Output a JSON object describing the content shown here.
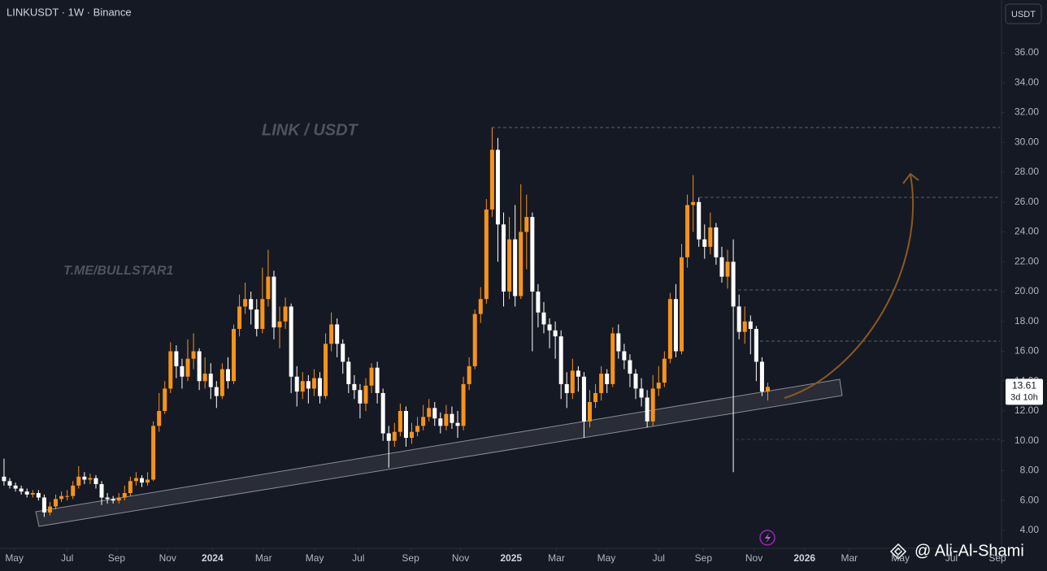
{
  "chart_data": {
    "type": "candlestick",
    "title": "LINKUSDT · 1W · Binance",
    "currency": "USDT",
    "annotations": [
      "LINK / USDT",
      "T.ME/BULLSTAR1"
    ],
    "credit": "@ Ali-Al-Shami",
    "last_price": 13.61,
    "countdown": "3d 10h",
    "up_color": "#f7931a",
    "down_color": "#ffffff",
    "xlim": [
      -0.7,
      173.7
    ],
    "ylim": [
      2.8,
      39.54
    ],
    "xticks": [
      {
        "value": 1.8,
        "label": "May"
      },
      {
        "value": 11.0,
        "label": "Jul"
      },
      {
        "value": 19.6,
        "label": "Sep"
      },
      {
        "value": 28.5,
        "label": "Nov"
      },
      {
        "value": 36.3,
        "label": "2024"
      },
      {
        "value": 45.2,
        "label": "Mar"
      },
      {
        "value": 54.1,
        "label": "May"
      },
      {
        "value": 61.7,
        "label": "Jul"
      },
      {
        "value": 70.8,
        "label": "Sep"
      },
      {
        "value": 79.5,
        "label": "Nov"
      },
      {
        "value": 88.3,
        "label": "2025"
      },
      {
        "value": 96.2,
        "label": "Mar"
      },
      {
        "value": 104.9,
        "label": "May"
      },
      {
        "value": 114.0,
        "label": "Jul"
      },
      {
        "value": 121.8,
        "label": "Sep"
      },
      {
        "value": 130.6,
        "label": "Nov"
      },
      {
        "value": 139.4,
        "label": "2026"
      },
      {
        "value": 147.2,
        "label": "Mar"
      },
      {
        "value": 156.1,
        "label": "May"
      },
      {
        "value": 165.0,
        "label": "Jul"
      },
      {
        "value": 173.0,
        "label": "Sep"
      }
    ],
    "yticks": [
      {
        "value": 4,
        "label": "4.00"
      },
      {
        "value": 6,
        "label": "6.00"
      },
      {
        "value": 8,
        "label": "8.00"
      },
      {
        "value": 10,
        "label": "10.00"
      },
      {
        "value": 12,
        "label": "12.00"
      },
      {
        "value": 14,
        "label": "14.00"
      },
      {
        "value": 16,
        "label": "16.00"
      },
      {
        "value": 18,
        "label": "18.00"
      },
      {
        "value": 20,
        "label": "20.00"
      },
      {
        "value": 22,
        "label": "22.00"
      },
      {
        "value": 24,
        "label": "24.00"
      },
      {
        "value": 26,
        "label": "26.00"
      },
      {
        "value": 28,
        "label": "28.00"
      },
      {
        "value": 30,
        "label": "30.00"
      },
      {
        "value": 32,
        "label": "32.00"
      },
      {
        "value": 34,
        "label": "34.00"
      },
      {
        "value": 36,
        "label": "36.00"
      }
    ],
    "open": [
      7.6,
      7.3,
      7.0,
      6.8,
      6.6,
      6.4,
      6.5,
      6.2,
      5.2,
      5.6,
      6.1,
      6.3,
      6.3,
      7.0,
      7.6,
      7.4,
      7.5,
      7.1,
      6.2,
      6.1,
      6.0,
      6.2,
      6.5,
      7.3,
      7.5,
      7.2,
      7.4,
      11.0,
      12.0,
      13.5,
      16.0,
      15.0,
      14.3,
      15.5,
      16.0,
      14.0,
      14.5,
      13.6,
      13.0,
      14.8,
      14.0,
      17.5,
      19.0,
      19.5,
      18.8,
      17.5,
      19.5,
      21.0,
      17.6,
      18.0,
      19.0,
      14.3,
      13.3,
      14.0,
      13.5,
      14.2,
      13.0,
      16.5,
      17.8,
      16.5,
      15.3,
      13.8,
      13.4,
      12.5,
      13.7,
      14.9,
      13.2,
      10.5,
      10.0,
      10.6,
      12.0,
      10.2,
      10.6,
      11.0,
      11.6,
      12.2,
      11.5,
      11.0,
      11.8,
      11.2,
      11.0,
      13.8,
      15.0,
      18.5,
      19.5,
      25.5,
      29.5,
      24.5,
      20.0,
      23.5,
      19.7,
      24.0,
      25.0,
      20.0,
      18.6,
      17.8,
      17.4,
      17.0,
      13.8,
      13.2,
      14.7,
      14.3,
      11.3,
      12.6,
      13.2,
      14.5,
      13.8,
      17.2,
      16.0,
      15.4,
      14.5,
      13.5,
      12.9,
      11.3,
      13.5,
      13.9,
      15.5,
      19.5,
      16.0,
      22.3,
      25.8,
      26.0,
      23.5,
      23.0,
      24.3,
      22.3,
      21.0,
      22.0,
      19.0,
      17.3,
      18.0,
      17.5,
      15.3,
      13.3
    ],
    "high": [
      8.8,
      7.5,
      7.2,
      7.0,
      6.8,
      6.7,
      6.7,
      6.4,
      5.9,
      6.4,
      6.6,
      6.7,
      7.3,
      8.3,
      7.9,
      7.8,
      7.7,
      7.3,
      6.5,
      6.3,
      6.5,
      7.0,
      7.6,
      7.9,
      7.7,
      7.9,
      11.3,
      13.2,
      14.0,
      16.6,
      16.4,
      15.5,
      16.8,
      17.2,
      16.2,
      15.6,
      15.2,
      14.0,
      15.2,
      15.6,
      17.8,
      19.8,
      20.6,
      20.0,
      19.5,
      21.6,
      22.8,
      21.4,
      19.0,
      19.6,
      19.2,
      15.0,
      14.6,
      14.4,
      14.8,
      14.6,
      17.2,
      18.6,
      18.2,
      16.8,
      15.6,
      14.4,
      13.8,
      14.2,
      15.2,
      15.3,
      13.5,
      11.0,
      11.2,
      12.5,
      12.3,
      11.2,
      11.6,
      12.4,
      12.8,
      12.6,
      11.9,
      12.4,
      12.3,
      12.0,
      14.3,
      15.6,
      18.8,
      20.3,
      26.2,
      31.0,
      30.3,
      25.3,
      25.0,
      25.8,
      27.2,
      26.5,
      25.3,
      20.5,
      19.3,
      18.2,
      18.0,
      17.4,
      14.6,
      15.5,
      15.0,
      14.6,
      13.4,
      13.8,
      15.0,
      14.8,
      17.6,
      17.8,
      16.5,
      15.8,
      14.8,
      14.2,
      13.4,
      14.4,
      15.0,
      16.0,
      19.9,
      20.5,
      23.2,
      26.5,
      27.8,
      26.3,
      24.5,
      25.3,
      24.6,
      23.0,
      22.8,
      23.5,
      19.8,
      19.0,
      18.4,
      17.7,
      15.6,
      13.9
    ],
    "low": [
      7.0,
      6.8,
      6.6,
      6.4,
      6.2,
      6.2,
      6.0,
      4.9,
      5.0,
      5.4,
      5.9,
      6.0,
      6.1,
      6.8,
      7.1,
      7.1,
      6.8,
      5.7,
      5.8,
      5.8,
      5.8,
      6.0,
      6.3,
      7.0,
      6.9,
      7.0,
      7.3,
      10.6,
      11.8,
      13.2,
      14.2,
      13.5,
      14.0,
      14.8,
      13.4,
      13.5,
      12.8,
      12.2,
      12.8,
      13.5,
      13.8,
      17.0,
      18.5,
      17.8,
      17.0,
      17.2,
      19.0,
      16.8,
      16.2,
      17.5,
      13.2,
      12.3,
      12.8,
      12.5,
      13.0,
      12.5,
      12.8,
      16.0,
      15.6,
      14.5,
      13.2,
      12.8,
      11.5,
      12.0,
      13.2,
      12.5,
      10.0,
      8.2,
      9.6,
      10.3,
      9.6,
      9.8,
      10.3,
      10.7,
      11.3,
      11.0,
      10.5,
      10.7,
      10.8,
      10.2,
      10.7,
      13.4,
      14.8,
      17.9,
      19.2,
      25.0,
      22.0,
      19.0,
      19.5,
      19.0,
      19.5,
      21.5,
      16.0,
      17.6,
      17.2,
      16.2,
      15.5,
      12.8,
      12.2,
      12.8,
      13.3,
      10.2,
      10.9,
      12.2,
      12.7,
      13.2,
      13.6,
      15.5,
      14.8,
      13.6,
      12.8,
      12.3,
      10.9,
      11.0,
      13.0,
      13.6,
      15.2,
      15.6,
      15.8,
      21.6,
      24.0,
      23.0,
      22.2,
      22.5,
      21.8,
      20.6,
      20.2,
      7.9,
      16.8,
      16.5,
      15.8,
      14.0,
      13.0,
      12.7
    ],
    "close": [
      7.3,
      7.0,
      6.8,
      6.6,
      6.4,
      6.5,
      6.2,
      5.2,
      5.6,
      6.1,
      6.3,
      6.3,
      7.0,
      7.6,
      7.4,
      7.5,
      7.1,
      6.2,
      6.1,
      6.0,
      6.2,
      6.5,
      7.3,
      7.5,
      7.2,
      7.4,
      11.0,
      12.0,
      13.5,
      16.0,
      15.0,
      14.3,
      15.5,
      16.0,
      14.0,
      14.5,
      13.6,
      13.0,
      14.8,
      14.0,
      17.5,
      19.0,
      19.5,
      18.8,
      17.5,
      19.5,
      21.0,
      17.6,
      18.0,
      19.0,
      14.3,
      13.3,
      14.0,
      13.5,
      14.2,
      13.0,
      16.5,
      17.8,
      16.5,
      15.3,
      13.8,
      13.4,
      12.5,
      13.7,
      14.9,
      13.2,
      10.5,
      10.0,
      10.6,
      12.0,
      10.2,
      10.6,
      11.0,
      11.6,
      12.2,
      11.5,
      11.0,
      11.8,
      11.2,
      11.0,
      13.8,
      15.0,
      18.5,
      19.5,
      25.5,
      29.5,
      24.5,
      20.0,
      23.5,
      19.7,
      24.0,
      25.0,
      20.0,
      18.6,
      17.8,
      17.4,
      17.0,
      13.8,
      13.2,
      14.7,
      14.3,
      11.3,
      12.6,
      13.2,
      14.5,
      13.8,
      17.2,
      16.0,
      15.4,
      14.5,
      13.5,
      12.9,
      11.3,
      13.5,
      13.9,
      15.5,
      19.5,
      16.0,
      22.3,
      25.8,
      26.0,
      23.5,
      23.0,
      24.3,
      22.3,
      21.0,
      22.0,
      19.0,
      17.3,
      18.0,
      17.5,
      15.3,
      13.3,
      13.61
    ]
  }
}
